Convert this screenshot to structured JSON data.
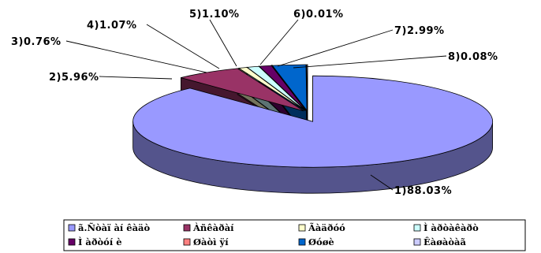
{
  "chart_data": {
    "type": "pie",
    "style": "3d-exploded",
    "title": "",
    "slices": [
      {
        "label": "1)88.03%",
        "value": 88.03,
        "legend": "ã.Ñòàï àí êàäò",
        "color": "#9999ff"
      },
      {
        "label": "2)5.96%",
        "value": 5.96,
        "legend": "Àñêàðàí",
        "color": "#993366"
      },
      {
        "label": "3)0.76%",
        "value": 0.76,
        "legend": "Ãàäðóó",
        "color": "#ffffcc"
      },
      {
        "label": "4)1.07%",
        "value": 1.07,
        "legend": "Ì àðòàêàðò",
        "color": "#ccffff"
      },
      {
        "label": "5)1.10%",
        "value": 1.1,
        "legend": "Ì àðòóí è",
        "color": "#660066"
      },
      {
        "label": "6)0.01%",
        "value": 0.01,
        "legend": "Øàòì ÿí",
        "color": "#ff8080"
      },
      {
        "label": "7)2.99%",
        "value": 2.99,
        "legend": "Øóøè",
        "color": "#0066cc"
      },
      {
        "label": "8)0.08%",
        "value": 0.08,
        "legend": "Êàøàòàã",
        "color": "#ccccff"
      }
    ],
    "legend_position": "bottom"
  }
}
